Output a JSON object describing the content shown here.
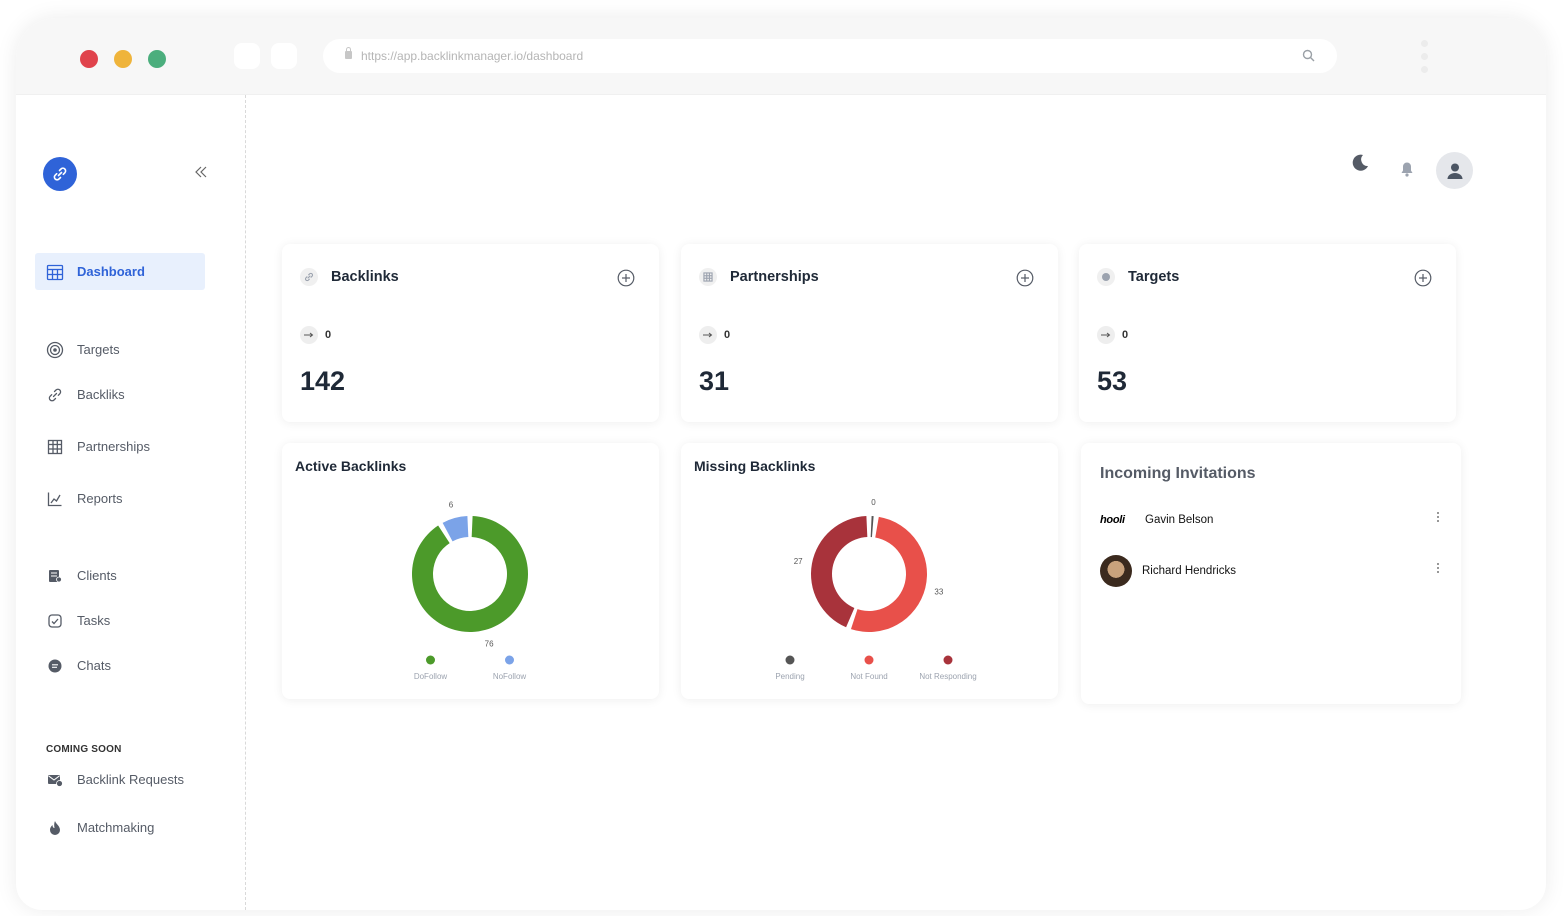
{
  "browser": {
    "url": "https://app.backlinkmanager.io/dashboard"
  },
  "sidebar": {
    "items": [
      {
        "label": "Dashboard",
        "icon": "calendar-grid-icon",
        "active": true
      },
      {
        "label": "Targets",
        "icon": "target-icon"
      },
      {
        "label": "Backliks",
        "icon": "link-icon"
      },
      {
        "label": "Partnerships",
        "icon": "table-icon"
      },
      {
        "label": "Reports",
        "icon": "chart-icon"
      },
      {
        "label": "Clients",
        "icon": "clients-icon"
      },
      {
        "label": "Tasks",
        "icon": "tasks-icon"
      },
      {
        "label": "Chats",
        "icon": "chat-icon"
      }
    ],
    "coming_soon_label": "COMING SOON",
    "coming_soon_items": [
      {
        "label": "Backlink Requests",
        "icon": "mail-icon"
      },
      {
        "label": "Matchmaking",
        "icon": "flame-icon"
      }
    ]
  },
  "stats": [
    {
      "title": "Backlinks",
      "change": "0",
      "value": "142"
    },
    {
      "title": "Partnerships",
      "change": "0",
      "value": "31"
    },
    {
      "title": "Targets",
      "change": "0",
      "value": "53"
    }
  ],
  "chart_data": [
    {
      "type": "pie",
      "title": "Active Backlinks",
      "categories": [
        "DoFollow",
        "NoFollow"
      ],
      "values": [
        76,
        6
      ],
      "colors": [
        "#4c9a2a",
        "#7ba3e8"
      ],
      "legend": "bottom"
    },
    {
      "type": "pie",
      "title": "Missing Backlinks",
      "categories": [
        "Pending",
        "Not Found",
        "Not Responding"
      ],
      "values": [
        0,
        33,
        27
      ],
      "colors": [
        "#555555",
        "#e8504a",
        "#a8333b"
      ],
      "legend": "bottom"
    }
  ],
  "invitations": {
    "title": "Incoming Invitations",
    "items": [
      {
        "name": "Gavin Belson",
        "logo_text": "hooli"
      },
      {
        "name": "Richard Hendricks"
      }
    ]
  }
}
